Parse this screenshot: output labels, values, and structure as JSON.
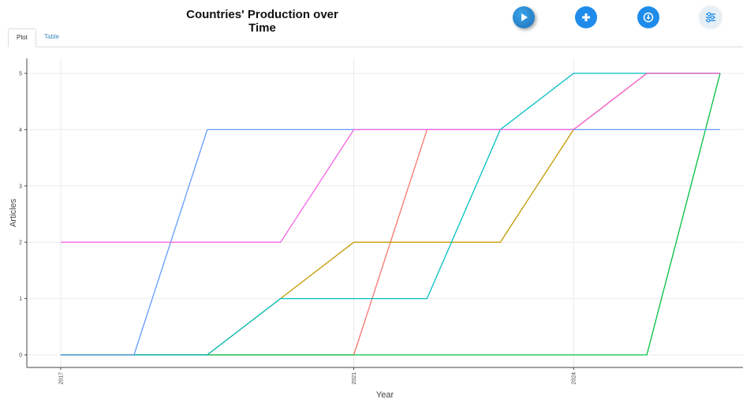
{
  "header": {
    "title": "Countries' Production over Time"
  },
  "tabs": [
    {
      "label": "Plot",
      "active": true
    },
    {
      "label": "Table",
      "active": false
    }
  ],
  "toolbar": [
    {
      "icon": "play-icon",
      "color": "#1f6fb8"
    },
    {
      "icon": "plus-icon",
      "color": "#1f8ceb"
    },
    {
      "icon": "download-icon",
      "color": "#1f8ceb"
    },
    {
      "icon": "sliders-icon",
      "color": "#e6eef6"
    }
  ],
  "chart_data": {
    "type": "line",
    "title": "",
    "xlabel": "Year",
    "ylabel": "Articles",
    "xlim": [
      2017,
      2026
    ],
    "ylim": [
      0,
      5
    ],
    "x_ticks": [
      "2017",
      "2021",
      "2024"
    ],
    "y_ticks": [
      "0",
      "1",
      "2",
      "3",
      "4",
      "5"
    ],
    "grid": true,
    "legend": "none",
    "x": [
      2017,
      2018,
      2019,
      2020,
      2021,
      2022,
      2023,
      2024,
      2025,
      2026
    ],
    "series": [
      {
        "color": "#F8766D",
        "values": [
          0,
          0,
          0,
          0,
          0,
          4,
          4,
          4,
          5,
          5
        ]
      },
      {
        "color": "#C49A00",
        "values": [
          0,
          0,
          0,
          1,
          2,
          2,
          2,
          4,
          5,
          5
        ]
      },
      {
        "color": "#00C040",
        "values": [
          0,
          0,
          0,
          0,
          0,
          0,
          0,
          0,
          0,
          5
        ]
      },
      {
        "color": "#00BFC4",
        "values": [
          0,
          0,
          0,
          1,
          1,
          1,
          4,
          5,
          5,
          5
        ]
      },
      {
        "color": "#619CFF",
        "values": [
          0,
          0,
          4,
          4,
          4,
          4,
          4,
          4,
          4,
          4
        ]
      },
      {
        "color": "#F564E3",
        "values": [
          2,
          2,
          2,
          2,
          4,
          4,
          4,
          4,
          5,
          5
        ]
      }
    ]
  }
}
